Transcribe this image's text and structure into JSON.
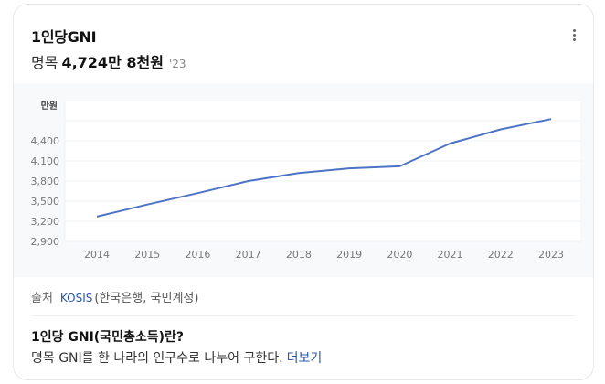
{
  "header": {
    "title": "1인당GNI",
    "label": "명목",
    "value": "4,724만 8천원",
    "year": "'23",
    "more_icon": "more-vertical-icon"
  },
  "chart_data": {
    "type": "line",
    "title": "1인당GNI",
    "xlabel": "",
    "ylabel": "만원",
    "categories": [
      "2014",
      "2015",
      "2016",
      "2017",
      "2018",
      "2019",
      "2020",
      "2021",
      "2022",
      "2023"
    ],
    "series": [
      {
        "name": "명목 1인당GNI",
        "values": [
          3270,
          3450,
          3620,
          3800,
          3920,
          3990,
          4020,
          4360,
          4570,
          4725
        ],
        "color": "#4e73c6"
      }
    ],
    "yticks": [
      "2,900",
      "3,200",
      "3,500",
      "3,800",
      "4,100",
      "4,400"
    ],
    "ylim": [
      2900,
      4900
    ],
    "grid": true,
    "legend": "none"
  },
  "source": {
    "label": "출처",
    "link": "KOSIS",
    "detail": "(한국은행, 국민계정)"
  },
  "definition": {
    "title": "1인당 GNI(국민총소득)란?",
    "text": "명목 GNI를 한 나라의 인구수로 나누어 구한다.",
    "more": "더보기"
  }
}
